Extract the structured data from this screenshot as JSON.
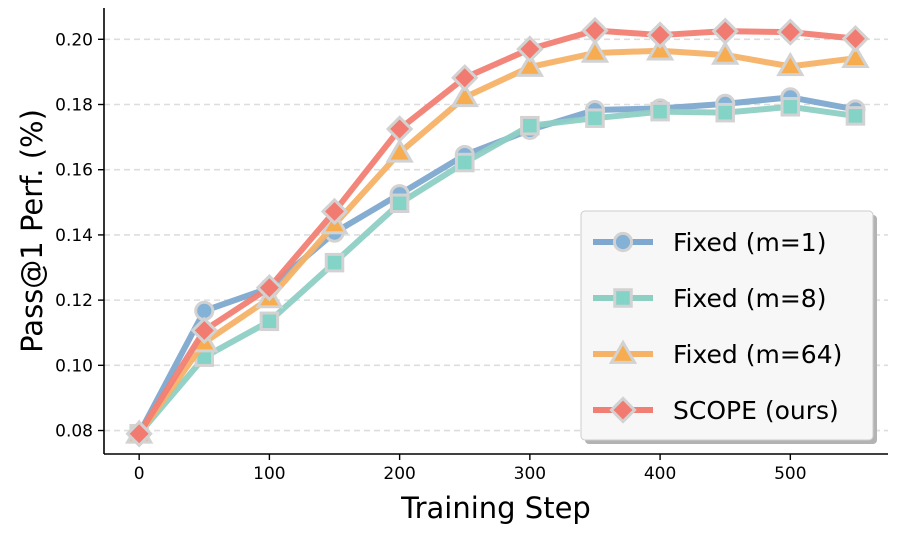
{
  "chart_data": {
    "type": "line",
    "title": "",
    "xlabel": "Training Step",
    "ylabel": "Pass@1 Perf. (%)",
    "x": [
      0,
      50,
      100,
      150,
      200,
      250,
      300,
      350,
      400,
      450,
      500,
      550
    ],
    "xlim": [
      -27,
      575
    ],
    "ylim": [
      0.0728,
      0.2096
    ],
    "xticks": [
      0,
      100,
      200,
      300,
      400,
      500
    ],
    "xtick_labels": [
      "0",
      "100",
      "200",
      "300",
      "400",
      "500"
    ],
    "yticks": [
      0.08,
      0.1,
      0.12,
      0.14,
      0.16,
      0.18,
      0.2
    ],
    "ytick_labels": [
      "0.08",
      "0.10",
      "0.12",
      "0.14",
      "0.16",
      "0.18",
      "0.20"
    ],
    "grid": "horizontal dashed",
    "legend_position": "lower-right",
    "series": [
      {
        "name": "Fixed (m=1)",
        "color": "#7ea8cf",
        "marker_color": "#84b1d6",
        "marker": "circle",
        "values": [
          0.079,
          0.1167,
          0.1237,
          0.1407,
          0.1525,
          0.1645,
          0.1722,
          0.1783,
          0.1788,
          0.1802,
          0.1822,
          0.1785
        ]
      },
      {
        "name": "Fixed (m=8)",
        "color": "#8ecfc4",
        "marker_color": "#83d3c6",
        "marker": "square",
        "values": [
          0.079,
          0.1025,
          0.1135,
          0.1315,
          0.1497,
          0.1622,
          0.1735,
          0.1758,
          0.1778,
          0.1775,
          0.1793,
          0.1765
        ]
      },
      {
        "name": "Fixed (m=64)",
        "color": "#f6b267",
        "marker_color": "#f7ad4f",
        "marker": "triangle",
        "values": [
          0.079,
          0.107,
          0.1205,
          0.1432,
          0.1652,
          0.1822,
          0.1915,
          0.1958,
          0.1965,
          0.1952,
          0.1917,
          0.1942
        ]
      },
      {
        "name": "SCOPE (ours)",
        "color": "#f27f74",
        "marker_color": "#f17b70",
        "marker": "diamond",
        "values": [
          0.079,
          0.1107,
          0.1238,
          0.1472,
          0.1725,
          0.1882,
          0.197,
          0.2027,
          0.2013,
          0.2025,
          0.2022,
          0.2002
        ]
      }
    ]
  }
}
